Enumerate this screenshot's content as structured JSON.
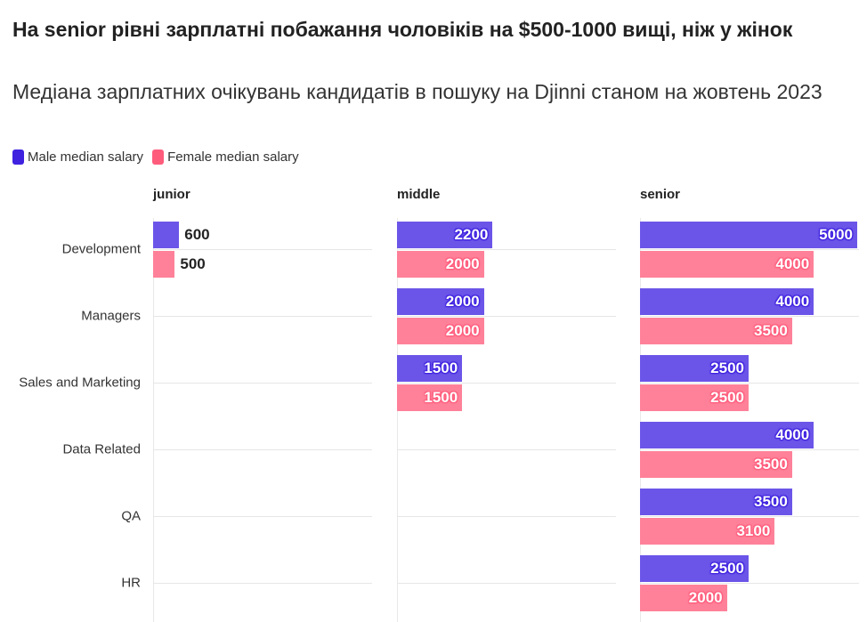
{
  "title": "На senior рівні зарплатні побажання чоловіків на $500-1000 вищі, ніж у жінок",
  "subtitle": "Медіана зарплатних очікувань кандидатів в пошуку на Djinni станом на жовтень 2023",
  "legend": [
    {
      "label": "Male median salary",
      "color": "#3e22e0"
    },
    {
      "label": "Female median salary",
      "color": "#ff5c7c"
    }
  ],
  "chart_data": {
    "type": "bar",
    "orientation": "horizontal",
    "categories": [
      "Development",
      "Managers",
      "Sales and Marketing",
      "Data Related",
      "QA",
      "HR"
    ],
    "bar_colors": {
      "male": "#6b55e8",
      "female": "#ff8199",
      "male_halo": "#3e22e0",
      "female_halo": "#ff5c7c"
    },
    "panels": [
      {
        "name": "junior",
        "male": [
          600,
          null,
          null,
          null,
          null,
          null
        ],
        "female": [
          500,
          null,
          null,
          null,
          null,
          null
        ]
      },
      {
        "name": "middle",
        "male": [
          2200,
          2000,
          1500,
          null,
          null,
          null
        ],
        "female": [
          2000,
          2000,
          1500,
          null,
          null,
          null
        ]
      },
      {
        "name": "senior",
        "male": [
          5000,
          4000,
          2500,
          4000,
          3500,
          2500
        ],
        "female": [
          4000,
          3500,
          2500,
          3500,
          3100,
          2000
        ]
      }
    ],
    "xlim": [
      0,
      5000
    ]
  }
}
